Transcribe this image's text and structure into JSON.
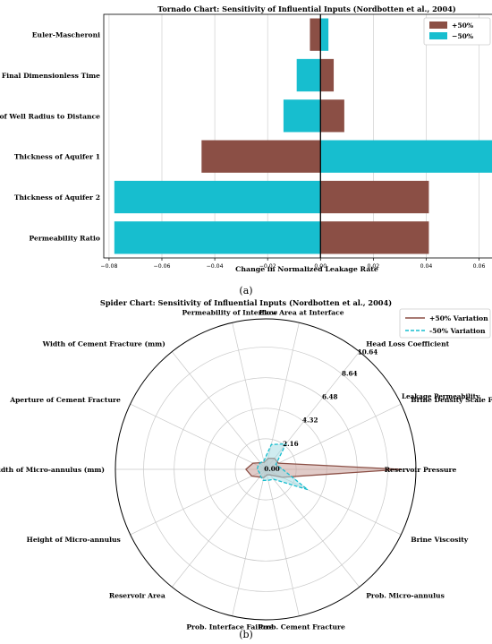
{
  "chart_data": [
    {
      "type": "bar",
      "orientation": "horizontal",
      "title": "Tornado Chart: Sensitivity of Influential Inputs (Nordbotten et al., 2004)",
      "xlabel": "Change in Normalized Leakage Rate",
      "ylabel": "",
      "panel_label": "(a)",
      "categories": [
        "Euler-Mascheroni",
        "Final Dimensionless Time",
        "Ratio of Well Radius to Distance",
        "Thickness of Aquifer 1",
        "Thickness of Aquifer 2",
        "Permeability Ratio"
      ],
      "series": [
        {
          "name": "+50%",
          "color": "#8b4f45",
          "values": [
            -0.004,
            0.005,
            0.009,
            -0.045,
            0.041,
            0.041
          ]
        },
        {
          "name": "−50%",
          "color": "#17becf",
          "values": [
            0.003,
            -0.009,
            -0.014,
            0.067,
            -0.078,
            -0.078
          ]
        }
      ],
      "xlim": [
        -0.082,
        0.072
      ],
      "xticks": [
        -0.08,
        -0.06,
        -0.04,
        -0.02,
        0.0,
        0.02,
        0.04,
        0.06
      ],
      "xtick_labels": [
        "−0.08",
        "−0.06",
        "−0.04",
        "−0.02",
        "0.00",
        "0.02",
        "0.04",
        "0.06"
      ],
      "grid": "vertical",
      "legend_position": "top-right"
    },
    {
      "type": "radar",
      "title": "Spider Chart: Sensitivity of Influential Inputs (Nordbotten et al., 2004)",
      "panel_label": "(b)",
      "radial_label": "Leakage Permeability",
      "rmax": 10.64,
      "rticks": [
        0.0,
        2.16,
        4.32,
        6.48,
        8.64,
        10.64
      ],
      "rtick_labels": [
        "0.00",
        "2.16",
        "4.32",
        "6.48",
        "8.64",
        "10.64"
      ],
      "axes": [
        "Reservoir Pressure",
        "Brine Viscosity",
        "Prob. Micro-annulus",
        "Prob. Cement Fracture",
        "Prob. Interface Failure",
        "Reservoir Area",
        "Height of Micro-annulus",
        "Width of Micro-annulus (mm)",
        "Aperture of Cement Fracture",
        "Width of Cement Fracture (mm)",
        "Permeability of Interface",
        "Flow Area at Interface",
        "Head Loss Coefficient",
        "Brine Density Scale Factor"
      ],
      "series": [
        {
          "name": "+50% Variation",
          "color": "#8b4f45",
          "fill": "#c9a19a",
          "style": "solid",
          "values": [
            9.6,
            1.3,
            0.5,
            0.4,
            0.6,
            0.7,
            1.1,
            1.4,
            1.0,
            0.6,
            0.5,
            0.8,
            1.0,
            1.0
          ]
        },
        {
          "name": "-50% Variation",
          "color": "#17becf",
          "fill": "#a8dde3",
          "style": "dashed",
          "values": [
            1.2,
            3.3,
            0.9,
            0.8,
            0.8,
            0.6,
            0.5,
            0.6,
            0.6,
            0.6,
            0.6,
            1.8,
            2.3,
            0.8
          ]
        }
      ],
      "legend_position": "top-right"
    }
  ]
}
